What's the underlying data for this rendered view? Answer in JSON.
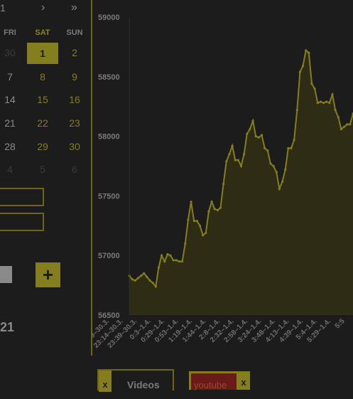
{
  "calendar": {
    "month_partial": "1",
    "next": "›",
    "next_year": "»",
    "weekdays": [
      "FRI",
      "SAT",
      "SUN"
    ],
    "rows": [
      [
        "30",
        "1",
        "2"
      ],
      [
        "7",
        "8",
        "9"
      ],
      [
        "14",
        "15",
        "16"
      ],
      [
        "21",
        "22",
        "23"
      ],
      [
        "28",
        "29",
        "30"
      ],
      [
        "4",
        "5",
        "6"
      ]
    ],
    "selected_day": "1"
  },
  "form": {
    "add_icon": "plus-icon",
    "year_partial": "21"
  },
  "colors": {
    "accent": "#857e1e",
    "background": "#1c1c1c",
    "chip_red": "#6b1a1a"
  },
  "chart_data": {
    "type": "area",
    "ylim": [
      56500,
      59000
    ],
    "y_ticks": [
      "59000",
      "58500",
      "58000",
      "57500",
      "57000",
      "56500"
    ],
    "x_tick_labels": [
      "22:49–30.3.",
      "23:14–30.3.",
      "23:39–30.3.",
      "0:3–1.4.",
      "0:29–1.4.",
      "0:53–1.4.",
      "1:19–1.4.",
      "1:44–1.4.",
      "2:8–1.4.",
      "2:32–1.4.",
      "2:58–1.4.",
      "3:24–1.4.",
      "3:48–1.4.",
      "4:13–1.4.",
      "4:39–1.4.",
      "5:4–1.4.",
      "5:29–1.4.",
      "5:5"
    ],
    "series": [
      {
        "values": [
          56830,
          56800,
          56790,
          56810,
          56830,
          56850,
          56820,
          56790,
          56770,
          56740,
          56900,
          57000,
          56950,
          57010,
          57000,
          56960,
          56960,
          56950,
          56950,
          57100,
          57300,
          57450,
          57290,
          57290,
          57250,
          57170,
          57190,
          57370,
          57450,
          57390,
          57380,
          57400,
          57600,
          57790,
          57850,
          57920,
          57800,
          57800,
          57750,
          57850,
          58020,
          58060,
          58130,
          58000,
          57990,
          58010,
          57900,
          57880,
          57770,
          57750,
          57700,
          57560,
          57620,
          57720,
          57900,
          57900,
          57970,
          58220,
          58540,
          58590,
          58720,
          58700,
          58440,
          58400,
          58280,
          58290,
          58280,
          58290,
          58280,
          58350,
          58220,
          58160,
          58060,
          58080,
          58100,
          58100,
          58190
        ]
      }
    ]
  },
  "tabs": {
    "chips": [
      {
        "remove": "x",
        "label": "Videos"
      },
      {
        "remove": "x",
        "label": "youtube"
      }
    ]
  }
}
